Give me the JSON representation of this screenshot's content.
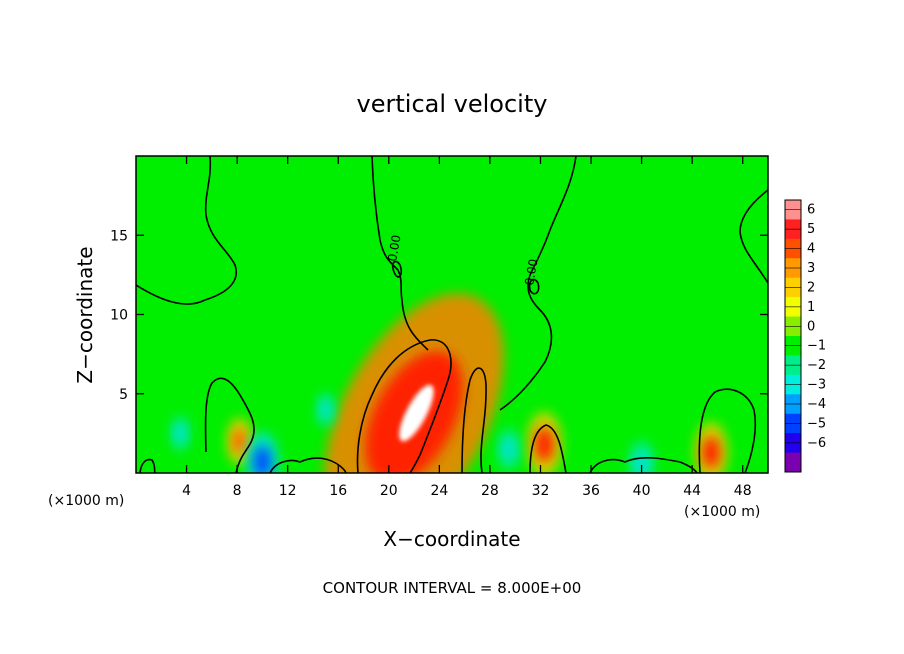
{
  "chart_data": {
    "type": "heatmap",
    "title": "vertical velocity",
    "xlabel": "X−coordinate",
    "ylabel": "Z−coordinate",
    "x_unit_left": "(×1000 m)",
    "x_unit_right": "(×1000 m)",
    "xlim": [
      0,
      50
    ],
    "ylim": [
      0,
      20
    ],
    "xticks": [
      4,
      8,
      12,
      16,
      20,
      24,
      28,
      32,
      36,
      40,
      44,
      48
    ],
    "yticks": [
      5,
      10,
      15
    ],
    "contour_label": "0.00",
    "contour_interval_text": "CONTOUR INTERVAL = 8.000E+00",
    "colorbar": {
      "levels": [
        "6",
        "5",
        "4",
        "3",
        "2",
        "1",
        "0",
        "−1",
        "−2",
        "−3",
        "−4",
        "−5",
        "−6"
      ],
      "colors": [
        "#ff9090",
        "#ff2020",
        "#ff5000",
        "#ff9a00",
        "#ffd000",
        "#f2ff00",
        "#88ee00",
        "#00ee00",
        "#00ee8a",
        "#00eedd",
        "#00a0ff",
        "#0040ff",
        "#2000ee",
        "#7a00b0"
      ]
    },
    "features": [
      {
        "label": "updraft core",
        "x": 22.0,
        "z": 3.5,
        "w": 12.0
      },
      {
        "label": "updraft",
        "x": 32.3,
        "z": 1.8,
        "w": 4.5
      },
      {
        "label": "updraft",
        "x": 45.5,
        "z": 1.3,
        "w": 4.0
      },
      {
        "label": "updraft",
        "x": 8.2,
        "z": 2.0,
        "w": 2.5
      },
      {
        "label": "downdraft",
        "x": 10.0,
        "z": 0.7,
        "w": -4.0
      },
      {
        "label": "downdraft",
        "x": 29.5,
        "z": 1.5,
        "w": -2.0
      },
      {
        "label": "downdraft",
        "x": 15.0,
        "z": 4.0,
        "w": -1.2
      },
      {
        "label": "downdraft",
        "x": 3.5,
        "z": 2.5,
        "w": -1.3
      },
      {
        "label": "downdraft",
        "x": 40.0,
        "z": 0.6,
        "w": -2.5
      }
    ]
  }
}
